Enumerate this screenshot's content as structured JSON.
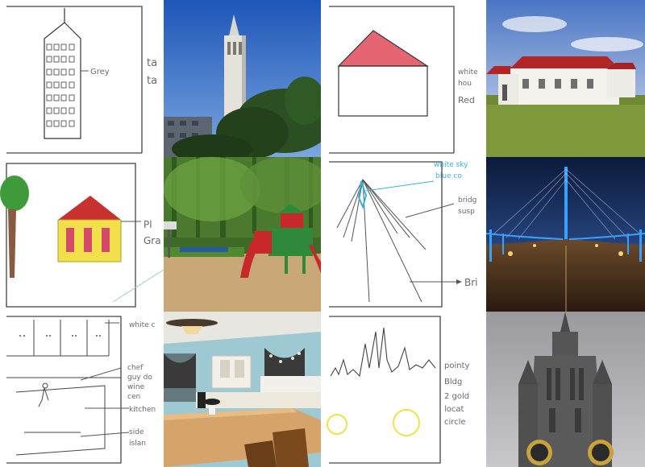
{
  "sketches": {
    "tower": {
      "label": "Grey",
      "margin_notes": [
        "ta",
        "ta"
      ]
    },
    "barn": {
      "margin_notes": [
        "white",
        "hou",
        "Red"
      ]
    },
    "house": {
      "margin_notes": [
        "Pl",
        "Gra"
      ]
    },
    "bridge": {
      "blue_note": [
        "white sky",
        "blue co"
      ],
      "labels": [
        "bridg",
        "susp",
        "Bri"
      ]
    },
    "kitchen": {
      "labels": [
        "white c",
        "chef",
        "guy do",
        "wine",
        "cen",
        "kitchen",
        "side",
        "islan"
      ]
    },
    "spire": {
      "labels": [
        "pointy",
        "Bldg",
        "2 gold",
        "locat",
        "circle"
      ]
    }
  },
  "palette": {
    "sky": "#3f74c8",
    "tree": "#2f5a26",
    "roof_red": "#b32626",
    "grass": "#6f8a34",
    "bridge_light": "#3aa0ff",
    "night": "#0b1a3a",
    "stone": "#5a5a5a",
    "sketch_red": "#e04a5a",
    "sketch_yellow": "#f2e04a",
    "sketch_blue": "#38b4d8"
  }
}
